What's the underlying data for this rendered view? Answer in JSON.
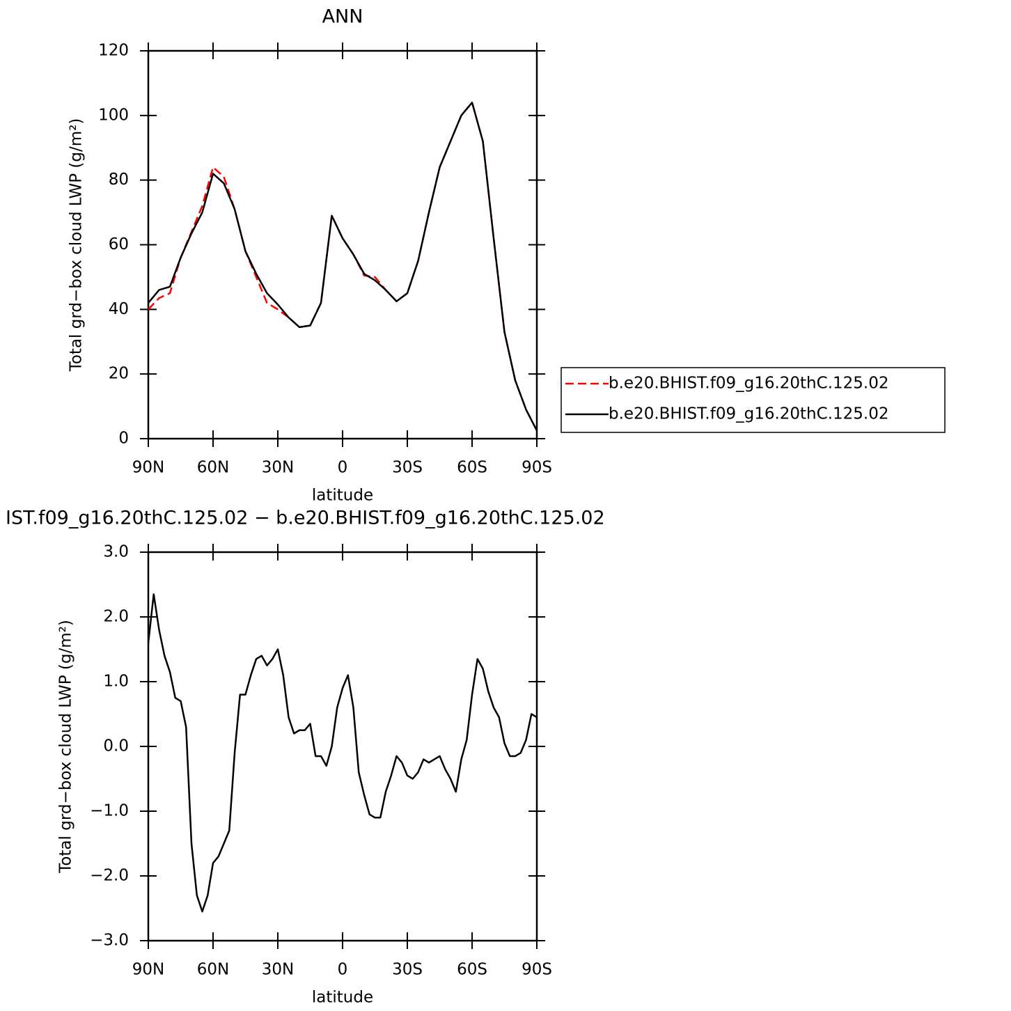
{
  "chart_data": [
    {
      "type": "line",
      "title": "ANN",
      "x_label": "latitude",
      "y_label": "Total grd−box cloud LWP (g/m²)",
      "x": [
        90,
        85,
        80,
        75,
        70,
        65,
        60,
        55,
        50,
        45,
        40,
        35,
        30,
        25,
        20,
        15,
        10,
        5,
        0,
        -5,
        -10,
        -15,
        -20,
        -25,
        -30,
        -35,
        -40,
        -45,
        -50,
        -55,
        -60,
        -65,
        -70,
        -75,
        -80,
        -85,
        -90
      ],
      "series": [
        {
          "name": "b.e20.BHIST.f09_g16.20thC.125.02",
          "color": "#ff0000",
          "dash": true,
          "values": [
            40,
            43.5,
            45,
            56,
            64,
            72,
            84,
            81,
            71,
            58,
            50,
            42,
            40,
            37.5,
            34.5,
            35,
            42,
            69,
            62,
            57,
            50.5,
            50,
            46,
            42.5,
            45,
            55,
            70,
            84,
            92,
            100,
            104,
            92,
            62,
            33,
            18,
            9,
            2.5
          ]
        },
        {
          "name": "b.e20.BHIST.f09_g16.20thC.125.02",
          "color": "#000000",
          "dash": false,
          "values": [
            42,
            46,
            47,
            56,
            63.5,
            70,
            82,
            79,
            71,
            58,
            51,
            45,
            41.5,
            37.5,
            34.5,
            35,
            42,
            69,
            62,
            57,
            51,
            49,
            46,
            42.5,
            45,
            55,
            70,
            84,
            92,
            100,
            104,
            92,
            62,
            33,
            18,
            9,
            2.5
          ]
        }
      ],
      "xlim": [
        90,
        -90
      ],
      "xticks": [
        {
          "value": 90,
          "label": "90N"
        },
        {
          "value": 60,
          "label": "60N"
        },
        {
          "value": 30,
          "label": "30N"
        },
        0,
        {
          "value": -30,
          "label": "30S"
        },
        {
          "value": -60,
          "label": "60S"
        },
        {
          "value": -90,
          "label": "90S"
        }
      ],
      "ylim": [
        0,
        120
      ],
      "yticks": [
        0,
        20,
        40,
        60,
        80,
        100,
        120
      ],
      "legend": "right"
    },
    {
      "type": "line",
      "title": "IST.f09_g16.20thC.125.02 − b.e20.BHIST.f09_g16.20thC.125.02",
      "x_label": "latitude",
      "y_label": "Total grd−box cloud LWP (g/m²)",
      "x": [
        90,
        87.5,
        85,
        82.5,
        80,
        77.5,
        75,
        72.5,
        70,
        67.5,
        65,
        62.5,
        60,
        57.5,
        55,
        52.5,
        50,
        47.5,
        45,
        42.5,
        40,
        37.5,
        35,
        32.5,
        30,
        27.5,
        25,
        22.5,
        20,
        17.5,
        15,
        12.5,
        10,
        7.5,
        5,
        2.5,
        0,
        -2.5,
        -5,
        -7.5,
        -10,
        -12.5,
        -15,
        -17.5,
        -20,
        -22.5,
        -25,
        -27.5,
        -30,
        -32.5,
        -35,
        -37.5,
        -40,
        -42.5,
        -45,
        -47.5,
        -50,
        -52.5,
        -55,
        -57.5,
        -60,
        -62.5,
        -65,
        -67.5,
        -70,
        -72.5,
        -75,
        -77.5,
        -80,
        -82.5,
        -85,
        -87.5,
        -90
      ],
      "series": [
        {
          "name": null,
          "color": "#000000",
          "dash": false,
          "values": [
            1.6,
            2.35,
            1.8,
            1.4,
            1.15,
            0.75,
            0.7,
            0.3,
            -1.5,
            -2.3,
            -2.55,
            -2.3,
            -1.8,
            -1.7,
            -1.5,
            -1.3,
            -0.1,
            0.8,
            0.8,
            1.1,
            1.35,
            1.4,
            1.25,
            1.35,
            1.5,
            1.1,
            0.45,
            0.2,
            0.25,
            0.25,
            0.35,
            -0.15,
            -0.15,
            -0.3,
            0,
            0.6,
            0.9,
            1.1,
            0.6,
            -0.4,
            -0.75,
            -1.05,
            -1.1,
            -1.1,
            -0.7,
            -0.45,
            -0.15,
            -0.25,
            -0.45,
            -0.5,
            -0.4,
            -0.2,
            -0.25,
            -0.2,
            -0.15,
            -0.35,
            -0.5,
            -0.7,
            -0.2,
            0.1,
            0.8,
            1.35,
            1.2,
            0.85,
            0.6,
            0.45,
            0.05,
            -0.15,
            -0.15,
            -0.1,
            0.1,
            0.5,
            0.45
          ]
        }
      ],
      "xlim": [
        90,
        -90
      ],
      "xticks": [
        {
          "value": 90,
          "label": "90N"
        },
        {
          "value": 60,
          "label": "60N"
        },
        {
          "value": 30,
          "label": "30N"
        },
        0,
        {
          "value": -30,
          "label": "30S"
        },
        {
          "value": -60,
          "label": "60S"
        },
        {
          "value": -90,
          "label": "90S"
        }
      ],
      "ylim": [
        -3,
        3
      ],
      "yticks": [
        {
          "value": -3,
          "label": "−3.0"
        },
        {
          "value": -2,
          "label": "−2.0"
        },
        {
          "value": -1,
          "label": "−1.0"
        },
        {
          "value": 0,
          "label": "0.0"
        },
        {
          "value": 1,
          "label": "1.0"
        },
        {
          "value": 2,
          "label": "2.0"
        },
        {
          "value": 3,
          "label": "3.0"
        }
      ]
    }
  ]
}
